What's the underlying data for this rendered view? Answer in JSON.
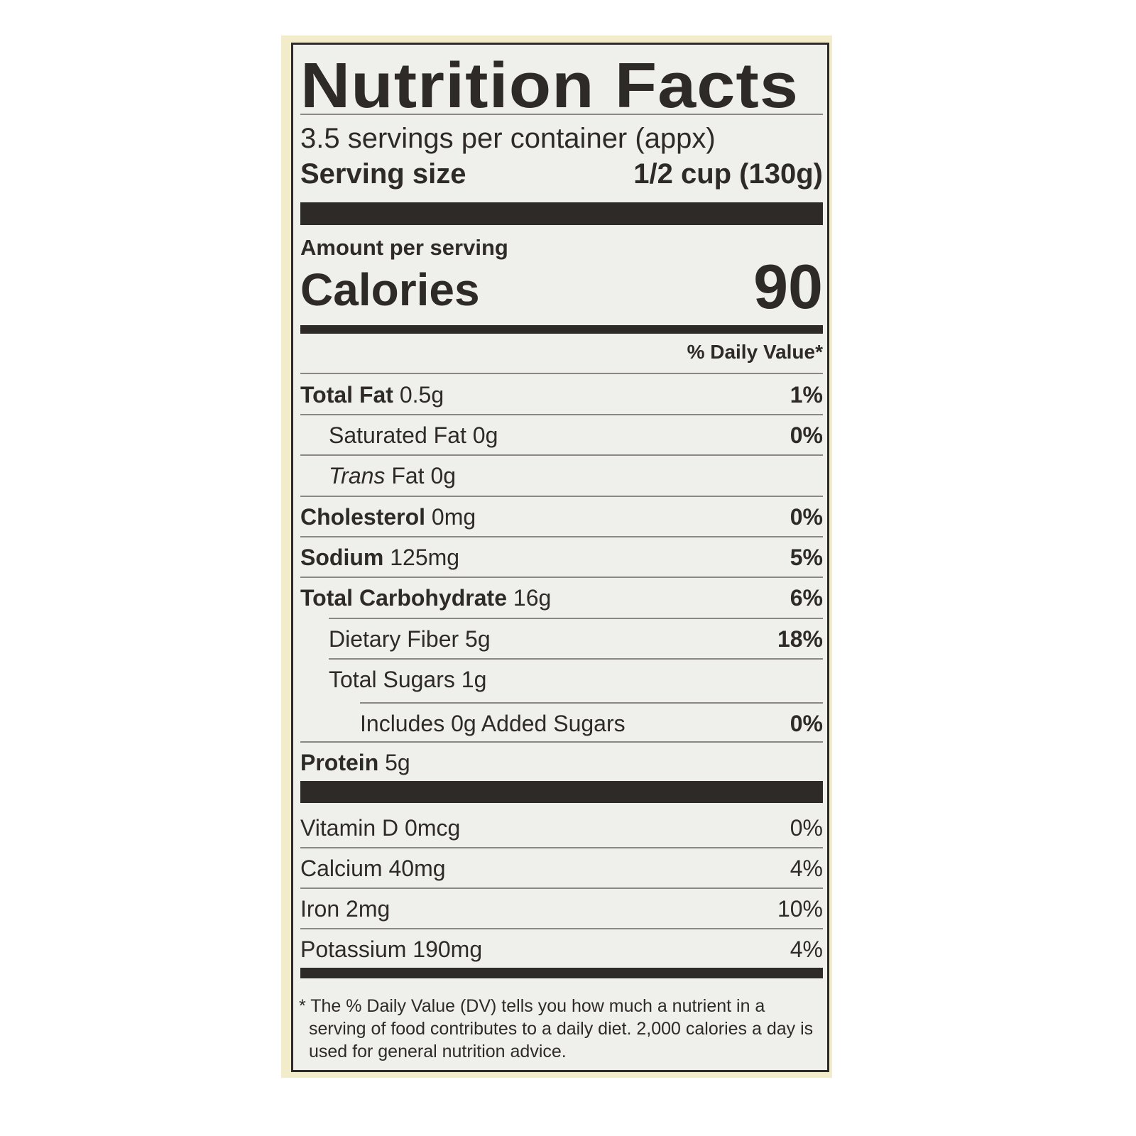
{
  "title": "Nutrition Facts",
  "servings_per_container": "3.5 servings per container (appx)",
  "serving_size_label": "Serving size",
  "serving_size_value": "1/2 cup (130g)",
  "amount_per_serving": "Amount per serving",
  "calories_label": "Calories",
  "calories_value": "90",
  "daily_value_header": "% Daily Value*",
  "nutrients": [
    {
      "name": "Total Fat",
      "amount": "0.5g",
      "dv": "1%"
    },
    {
      "name": "Saturated Fat",
      "amount": "0g",
      "dv": "0%"
    },
    {
      "name": "Trans",
      "name_rest": "Fat",
      "amount": "0g",
      "dv": ""
    },
    {
      "name": "Cholesterol",
      "amount": "0mg",
      "dv": "0%"
    },
    {
      "name": "Sodium",
      "amount": "125mg",
      "dv": "5%"
    },
    {
      "name": "Total Carbohydrate",
      "amount": "16g",
      "dv": "6%"
    },
    {
      "name": "Dietary Fiber",
      "amount": "5g",
      "dv": "18%"
    },
    {
      "name": "Total Sugars",
      "amount": "1g",
      "dv": ""
    },
    {
      "name": "Includes 0g Added Sugars",
      "amount": "",
      "dv": "0%"
    },
    {
      "name": "Protein",
      "amount": "5g",
      "dv": ""
    }
  ],
  "vitamins": [
    {
      "name": "Vitamin D",
      "amount": "0mcg",
      "dv": "0%"
    },
    {
      "name": "Calcium",
      "amount": "40mg",
      "dv": "4%"
    },
    {
      "name": "Iron",
      "amount": "2mg",
      "dv": "10%"
    },
    {
      "name": "Potassium",
      "amount": "190mg",
      "dv": "4%"
    }
  ],
  "footnote": "* The % Daily Value (DV) tells you how much a nutrient in a serving of food contributes to a daily diet. 2,000 calories a day is used for general nutrition advice."
}
